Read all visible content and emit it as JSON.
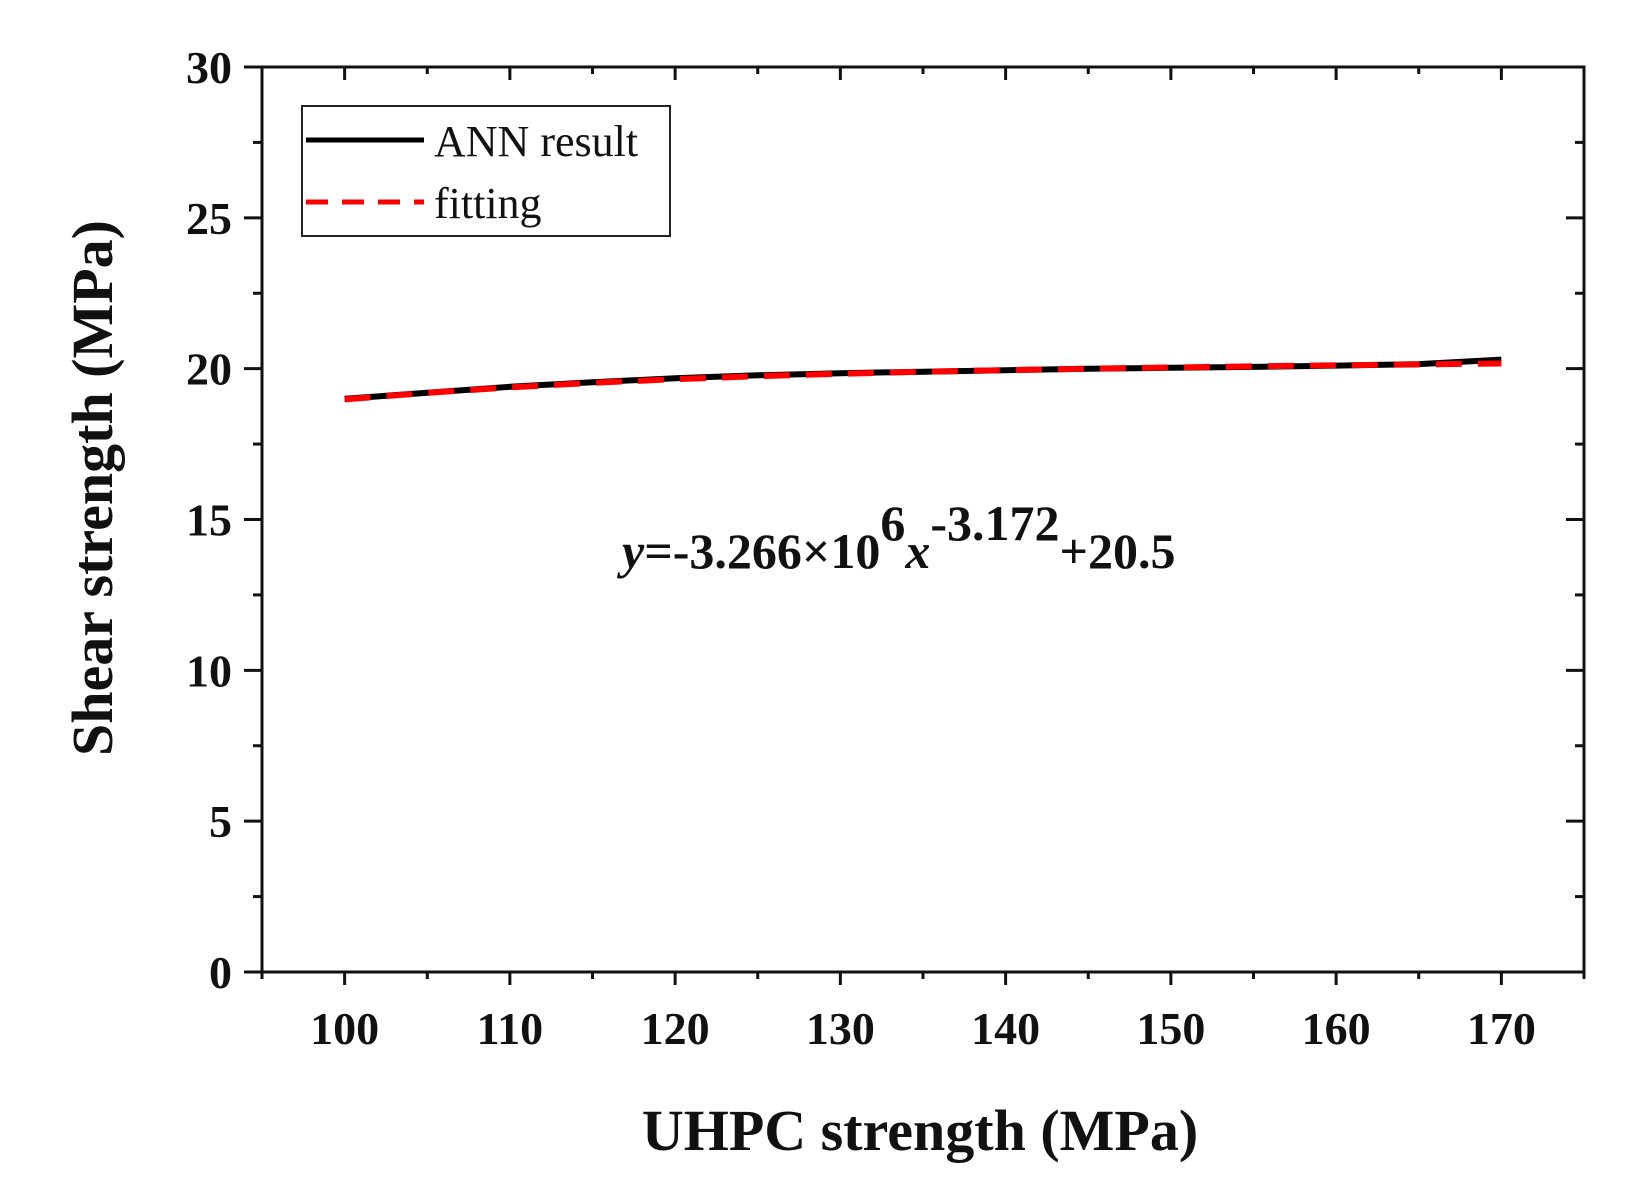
{
  "chart_data": {
    "type": "line",
    "title": "",
    "xlabel": "UHPC strength (MPa)",
    "ylabel": "Shear strength (MPa)",
    "xlim": [
      95,
      175
    ],
    "ylim": [
      0,
      30
    ],
    "x_ticks": [
      100,
      110,
      120,
      130,
      140,
      150,
      160,
      170
    ],
    "y_ticks": [
      0,
      5,
      10,
      15,
      20,
      25,
      30
    ],
    "grid": false,
    "legend_position": "top-left",
    "series": [
      {
        "name": "ANN result",
        "style": "solid",
        "color": "#000000",
        "x": [
          100,
          105,
          110,
          115,
          120,
          125,
          130,
          135,
          140,
          145,
          150,
          155,
          160,
          165,
          170
        ],
        "y": [
          19.0,
          19.2,
          19.4,
          19.55,
          19.68,
          19.78,
          19.85,
          19.9,
          19.95,
          20.0,
          20.03,
          20.06,
          20.1,
          20.15,
          20.3
        ]
      },
      {
        "name": "fitting",
        "style": "dashed",
        "color": "#ff0000",
        "x": [
          100,
          105,
          110,
          115,
          120,
          125,
          130,
          135,
          140,
          145,
          150,
          155,
          160,
          165,
          170
        ],
        "y": [
          18.98,
          19.2,
          19.38,
          19.53,
          19.65,
          19.75,
          19.83,
          19.9,
          19.95,
          20.0,
          20.04,
          20.08,
          20.11,
          20.14,
          20.17
        ]
      }
    ],
    "annotation": {
      "y_var": "y",
      "lhs_rest": "=-3.266×10",
      "exp1": "6",
      "x_var": "x",
      "exp2": "-3.172",
      "tail": "+20.5"
    }
  }
}
